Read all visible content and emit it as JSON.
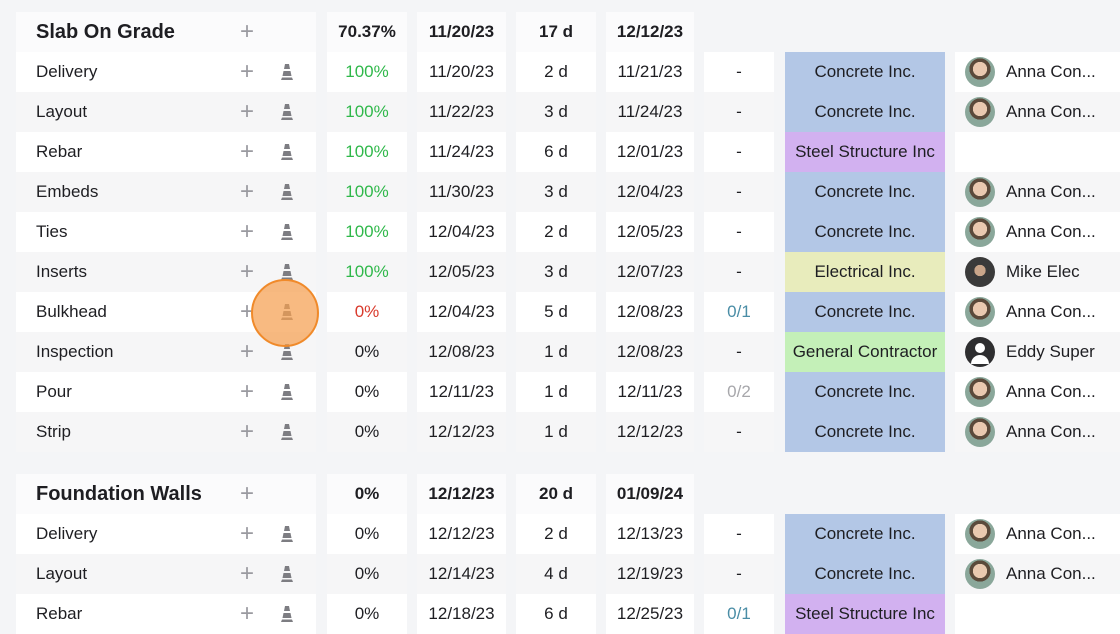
{
  "colors": {
    "concrete": "#b3c7e6",
    "steel": "#d2b1f0",
    "electrical": "#e8ecbc",
    "general": "#c4f0b8",
    "green_text": "#2fb84a",
    "red_text": "#d93a2c",
    "teal_text": "#4a8da6",
    "highlight": "#f08a2a"
  },
  "icons": {
    "add": "plus-icon",
    "milestone": "traffic-cone-icon"
  },
  "groups": [
    {
      "name": "Slab On Grade",
      "add": "+",
      "percent": "70.37%",
      "start": "11/20/23",
      "duration": "17 d",
      "end": "12/12/23",
      "tasks": [
        {
          "name": "Delivery",
          "add": "+",
          "percent": "100%",
          "start": "11/20/23",
          "duration": "2 d",
          "end": "11/21/23",
          "pred": "-",
          "company": "Concrete Inc.",
          "user": "Anna Con..."
        },
        {
          "name": "Layout",
          "add": "+",
          "percent": "100%",
          "start": "11/22/23",
          "duration": "3 d",
          "end": "11/24/23",
          "pred": "-",
          "company": "Concrete Inc.",
          "user": "Anna Con..."
        },
        {
          "name": "Rebar",
          "add": "+",
          "percent": "100%",
          "start": "11/24/23",
          "duration": "6 d",
          "end": "12/01/23",
          "pred": "-",
          "company": "Steel Structure Inc",
          "user": ""
        },
        {
          "name": "Embeds",
          "add": "+",
          "percent": "100%",
          "start": "11/30/23",
          "duration": "3 d",
          "end": "12/04/23",
          "pred": "-",
          "company": "Concrete Inc.",
          "user": "Anna Con..."
        },
        {
          "name": "Ties",
          "add": "+",
          "percent": "100%",
          "start": "12/04/23",
          "duration": "2 d",
          "end": "12/05/23",
          "pred": "-",
          "company": "Concrete Inc.",
          "user": "Anna Con..."
        },
        {
          "name": "Inserts",
          "add": "+",
          "percent": "100%",
          "start": "12/05/23",
          "duration": "3 d",
          "end": "12/07/23",
          "pred": "-",
          "company": "Electrical Inc.",
          "user": "Mike Elec"
        },
        {
          "name": "Bulkhead",
          "add": "+",
          "percent": "0%",
          "start": "12/04/23",
          "duration": "5 d",
          "end": "12/08/23",
          "pred": "0/1",
          "company": "Concrete Inc.",
          "user": "Anna Con..."
        },
        {
          "name": "Inspection",
          "add": "+",
          "percent": "0%",
          "start": "12/08/23",
          "duration": "1 d",
          "end": "12/08/23",
          "pred": "-",
          "company": "General Contractor",
          "user": "Eddy Super"
        },
        {
          "name": "Pour",
          "add": "+",
          "percent": "0%",
          "start": "12/11/23",
          "duration": "1 d",
          "end": "12/11/23",
          "pred": "0/2",
          "company": "Concrete Inc.",
          "user": "Anna Con..."
        },
        {
          "name": "Strip",
          "add": "+",
          "percent": "0%",
          "start": "12/12/23",
          "duration": "1 d",
          "end": "12/12/23",
          "pred": "-",
          "company": "Concrete Inc.",
          "user": "Anna Con..."
        }
      ]
    },
    {
      "name": "Foundation Walls",
      "add": "+",
      "percent": "0%",
      "start": "12/12/23",
      "duration": "20 d",
      "end": "01/09/24",
      "tasks": [
        {
          "name": "Delivery",
          "add": "+",
          "percent": "0%",
          "start": "12/12/23",
          "duration": "2 d",
          "end": "12/13/23",
          "pred": "-",
          "company": "Concrete Inc.",
          "user": "Anna Con..."
        },
        {
          "name": "Layout",
          "add": "+",
          "percent": "0%",
          "start": "12/14/23",
          "duration": "4 d",
          "end": "12/19/23",
          "pred": "-",
          "company": "Concrete Inc.",
          "user": "Anna Con..."
        },
        {
          "name": "Rebar",
          "add": "+",
          "percent": "0%",
          "start": "12/18/23",
          "duration": "6 d",
          "end": "12/25/23",
          "pred": "0/1",
          "company": "Steel Structure Inc",
          "user": ""
        }
      ]
    }
  ]
}
